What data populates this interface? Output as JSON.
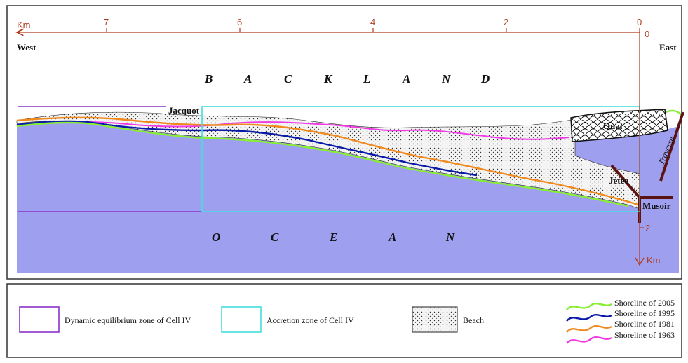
{
  "map": {
    "x_axis": {
      "unit": "Km",
      "ticks": [
        "7",
        "6",
        "4",
        "2",
        "0"
      ]
    },
    "y_axis": {
      "unit": "Km",
      "ticks": [
        "0",
        "2"
      ]
    },
    "west_label": "West",
    "east_label": "East",
    "backland_letters": [
      "B",
      "A",
      "C",
      "K",
      "L",
      "A",
      "N",
      "D"
    ],
    "ocean_letters": [
      "O",
      "C",
      "E",
      "A",
      "N"
    ],
    "places": {
      "jacquot": "Jacquot",
      "quai": "Quai",
      "traverse": "Traverse",
      "jetee": "Jetee",
      "musoir": "Musoir"
    },
    "colors": {
      "ocean": "#9f9ff0",
      "axis": "#b03a1e",
      "dynamic_zone": "#8a33c8",
      "accretion_zone": "#44dede",
      "shoreline_2005": "#88ee33",
      "shoreline_1995": "#0a1aa8",
      "shoreline_1981": "#f08a1e",
      "shoreline_1963": "#f03ae6",
      "structure": "#5a1414"
    }
  },
  "legend": {
    "dynamic_zone": "Dynamic equilibrium zone of Cell IV",
    "accretion_zone": "Accretion zone of Cell IV",
    "beach": "Beach",
    "shorelines": [
      "Shoreline of 2005",
      "Shoreline of 1995",
      "Shoreline of 1981",
      "Shoreline of 1963"
    ]
  }
}
